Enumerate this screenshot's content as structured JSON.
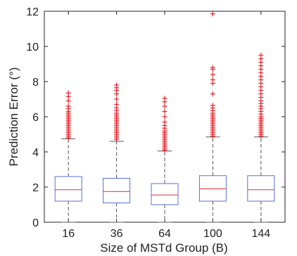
{
  "chart_data": {
    "type": "boxplot",
    "xlabel": "Size of MSTd Group (B)",
    "ylabel": "Prediction Error (°)",
    "ylim": [
      0,
      12
    ],
    "yticks": [
      0,
      2,
      4,
      6,
      8,
      10,
      12
    ],
    "categories": [
      "16",
      "36",
      "64",
      "100",
      "144"
    ],
    "grid": false,
    "colors": {
      "box": "#5b6fd6",
      "median": "#e0303a",
      "whisker": "#555555",
      "outlier": "#e8242c"
    },
    "boxes": [
      {
        "category": "16",
        "min": 0.0,
        "q1": 1.2,
        "median": 1.85,
        "q3": 2.6,
        "max": 4.75,
        "outliers": [
          4.8,
          4.9,
          5.0,
          5.1,
          5.2,
          5.3,
          5.4,
          5.5,
          5.6,
          5.7,
          5.8,
          5.9,
          6.0,
          6.1,
          6.2,
          6.3,
          6.45,
          6.6,
          6.9,
          7.15,
          7.35
        ]
      },
      {
        "category": "36",
        "min": 0.0,
        "q1": 1.1,
        "median": 1.75,
        "q3": 2.5,
        "max": 4.6,
        "outliers": [
          4.7,
          4.8,
          4.9,
          5.0,
          5.1,
          5.2,
          5.3,
          5.4,
          5.5,
          5.6,
          5.7,
          5.8,
          5.9,
          6.0,
          6.1,
          6.2,
          6.35,
          6.5,
          6.7,
          7.0,
          7.3,
          7.5,
          7.65,
          7.8
        ]
      },
      {
        "category": "64",
        "min": 0.0,
        "q1": 1.0,
        "median": 1.55,
        "q3": 2.2,
        "max": 4.05,
        "outliers": [
          4.1,
          4.2,
          4.3,
          4.4,
          4.5,
          4.6,
          4.7,
          4.8,
          4.9,
          5.0,
          5.1,
          5.2,
          5.35,
          5.5,
          5.7,
          6.0,
          6.3,
          6.6,
          6.85,
          7.05
        ]
      },
      {
        "category": "100",
        "min": 0.0,
        "q1": 1.2,
        "median": 1.9,
        "q3": 2.65,
        "max": 4.85,
        "outliers": [
          4.9,
          5.0,
          5.1,
          5.2,
          5.3,
          5.4,
          5.5,
          5.6,
          5.7,
          5.8,
          5.9,
          6.0,
          6.1,
          6.2,
          6.35,
          6.5,
          6.65,
          7.3,
          7.9,
          8.1,
          8.4,
          8.7,
          8.8,
          11.85
        ]
      },
      {
        "category": "144",
        "min": 0.0,
        "q1": 1.2,
        "median": 1.85,
        "q3": 2.65,
        "max": 4.85,
        "outliers": [
          4.9,
          5.0,
          5.1,
          5.2,
          5.3,
          5.4,
          5.5,
          5.6,
          5.7,
          5.8,
          5.9,
          6.0,
          6.15,
          6.3,
          6.45,
          6.6,
          6.75,
          6.9,
          7.1,
          7.3,
          7.5,
          7.7,
          7.9,
          8.1,
          8.3,
          8.5,
          8.7,
          8.9,
          9.1,
          9.3,
          9.5
        ]
      }
    ]
  }
}
